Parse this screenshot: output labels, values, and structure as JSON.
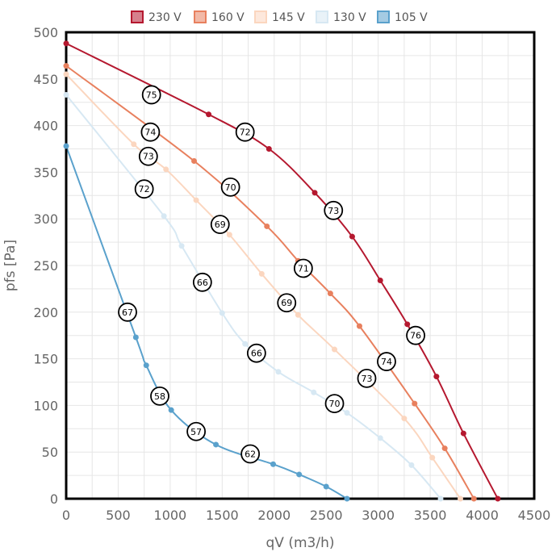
{
  "chart_data": {
    "type": "line",
    "title": "",
    "xlabel": "qV (m3/h)",
    "ylabel": "pfs [Pa]",
    "xlim": [
      0,
      4500
    ],
    "ylim": [
      0,
      500
    ],
    "xticks": [
      0,
      500,
      1000,
      1500,
      2000,
      2500,
      3000,
      3500,
      4000,
      4500
    ],
    "yticks": [
      0,
      50,
      100,
      150,
      200,
      250,
      300,
      350,
      400,
      450,
      500
    ],
    "grid": true,
    "legend_position": "top",
    "series": [
      {
        "name": "230 V",
        "color": "#b5182f",
        "x": [
          0,
          1370,
          1950,
          2390,
          2750,
          3020,
          3280,
          3560,
          3820,
          4150
        ],
        "y": [
          488,
          412,
          375,
          328,
          281,
          234,
          187,
          131,
          70,
          0
        ]
      },
      {
        "name": "160 V",
        "color": "#e8805e",
        "x": [
          0,
          1230,
          1930,
          2230,
          2540,
          2820,
          3350,
          3640,
          3920
        ],
        "y": [
          464,
          362,
          292,
          255,
          220,
          185,
          102,
          54,
          0
        ]
      },
      {
        "name": "145 V",
        "color": "#fbd6bf",
        "x": [
          0,
          650,
          960,
          1250,
          1570,
          1880,
          2230,
          2580,
          3250,
          3520,
          3790
        ],
        "y": [
          455,
          380,
          353,
          320,
          283,
          241,
          197,
          160,
          86,
          44,
          0
        ]
      },
      {
        "name": "130 V",
        "color": "#d7e8f3",
        "x": [
          0,
          940,
          1110,
          1500,
          1720,
          2040,
          2380,
          2700,
          3020,
          3320,
          3600
        ],
        "y": [
          433,
          303,
          271,
          199,
          166,
          136,
          114,
          92,
          65,
          36,
          0
        ]
      },
      {
        "name": "105 V",
        "color": "#5aa1cc",
        "x": [
          0,
          670,
          770,
          1010,
          1440,
          1990,
          2240,
          2500,
          2700
        ],
        "y": [
          378,
          173,
          143,
          95,
          58,
          37,
          26,
          13,
          0
        ]
      }
    ],
    "annotations": [
      {
        "x": 820,
        "y": 433,
        "label": "75"
      },
      {
        "x": 810,
        "y": 393,
        "label": "74"
      },
      {
        "x": 790,
        "y": 367,
        "label": "73"
      },
      {
        "x": 750,
        "y": 332,
        "label": "72"
      },
      {
        "x": 1720,
        "y": 393,
        "label": "72"
      },
      {
        "x": 1580,
        "y": 334,
        "label": "70"
      },
      {
        "x": 1480,
        "y": 294,
        "label": "69"
      },
      {
        "x": 1310,
        "y": 232,
        "label": "66"
      },
      {
        "x": 590,
        "y": 200,
        "label": "67"
      },
      {
        "x": 2570,
        "y": 309,
        "label": "73"
      },
      {
        "x": 2280,
        "y": 247,
        "label": "71"
      },
      {
        "x": 2120,
        "y": 210,
        "label": "69"
      },
      {
        "x": 1830,
        "y": 156,
        "label": "66"
      },
      {
        "x": 3360,
        "y": 175,
        "label": "76"
      },
      {
        "x": 3080,
        "y": 147,
        "label": "74"
      },
      {
        "x": 2890,
        "y": 129,
        "label": "73"
      },
      {
        "x": 2580,
        "y": 102,
        "label": "70"
      },
      {
        "x": 900,
        "y": 110,
        "label": "58"
      },
      {
        "x": 1250,
        "y": 72,
        "label": "57"
      },
      {
        "x": 1770,
        "y": 48,
        "label": "62"
      }
    ]
  }
}
